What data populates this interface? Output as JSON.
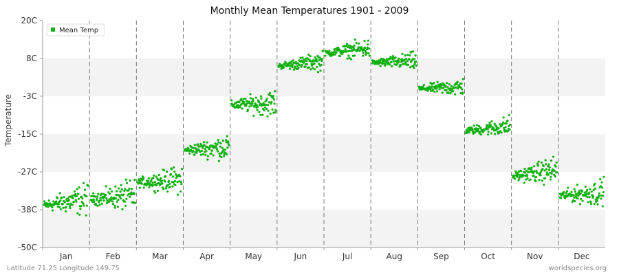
{
  "colors": {
    "series": "#11b011",
    "band_light": "#ffffff",
    "band_dark": "#f3f3f3",
    "grid_vertical": "#777777",
    "axis": "#999999",
    "text": "#333333"
  },
  "footer": {
    "left": "Latitude 71.25 Longitude 149.75",
    "right": "worldspecies.org"
  },
  "chart_data": {
    "type": "scatter",
    "title": "Monthly Mean Temperatures 1901 - 2009",
    "ylabel": "Temperature",
    "xlabel": "",
    "ylim": [
      -50,
      20
    ],
    "yticks": [
      {
        "value": 20,
        "label": "20C"
      },
      {
        "value": 8.33,
        "label": "8C"
      },
      {
        "value": -3.33,
        "label": "-3C"
      },
      {
        "value": -15,
        "label": "-15C"
      },
      {
        "value": -26.67,
        "label": "-27C"
      },
      {
        "value": -38.33,
        "label": "-38C"
      },
      {
        "value": -50,
        "label": "-50C"
      }
    ],
    "categories": [
      "Jan",
      "Feb",
      "Mar",
      "Apr",
      "May",
      "Jun",
      "Jul",
      "Aug",
      "Sep",
      "Oct",
      "Nov",
      "Dec"
    ],
    "legend": {
      "position": "top-left",
      "entries": [
        "Mean Temp"
      ]
    },
    "series": [
      {
        "name": "Mean Temp",
        "years": [
          1901,
          2009
        ],
        "monthly_summary": [
          {
            "month": "Jan",
            "start_mean": -37,
            "end_mean": -35,
            "spread": 3.5
          },
          {
            "month": "Feb",
            "start_mean": -35,
            "end_mean": -34,
            "spread": 3.5
          },
          {
            "month": "Mar",
            "start_mean": -30,
            "end_mean": -29,
            "spread": 3.0
          },
          {
            "month": "Apr",
            "start_mean": -20,
            "end_mean": -19,
            "spread": 2.8
          },
          {
            "month": "May",
            "start_mean": -6,
            "end_mean": -5.5,
            "spread": 3.0
          },
          {
            "month": "Jun",
            "start_mean": 6,
            "end_mean": 7.5,
            "spread": 2.0
          },
          {
            "month": "Jul",
            "start_mean": 10,
            "end_mean": 11.5,
            "spread": 2.2
          },
          {
            "month": "Aug",
            "start_mean": 7,
            "end_mean": 7.5,
            "spread": 2.0
          },
          {
            "month": "Sep",
            "start_mean": -1,
            "end_mean": -0.5,
            "spread": 2.0
          },
          {
            "month": "Oct",
            "start_mean": -14,
            "end_mean": -12.5,
            "spread": 2.2
          },
          {
            "month": "Nov",
            "start_mean": -28,
            "end_mean": -26,
            "spread": 3.0
          },
          {
            "month": "Dec",
            "start_mean": -34,
            "end_mean": -33,
            "spread": 3.0
          }
        ]
      }
    ]
  }
}
